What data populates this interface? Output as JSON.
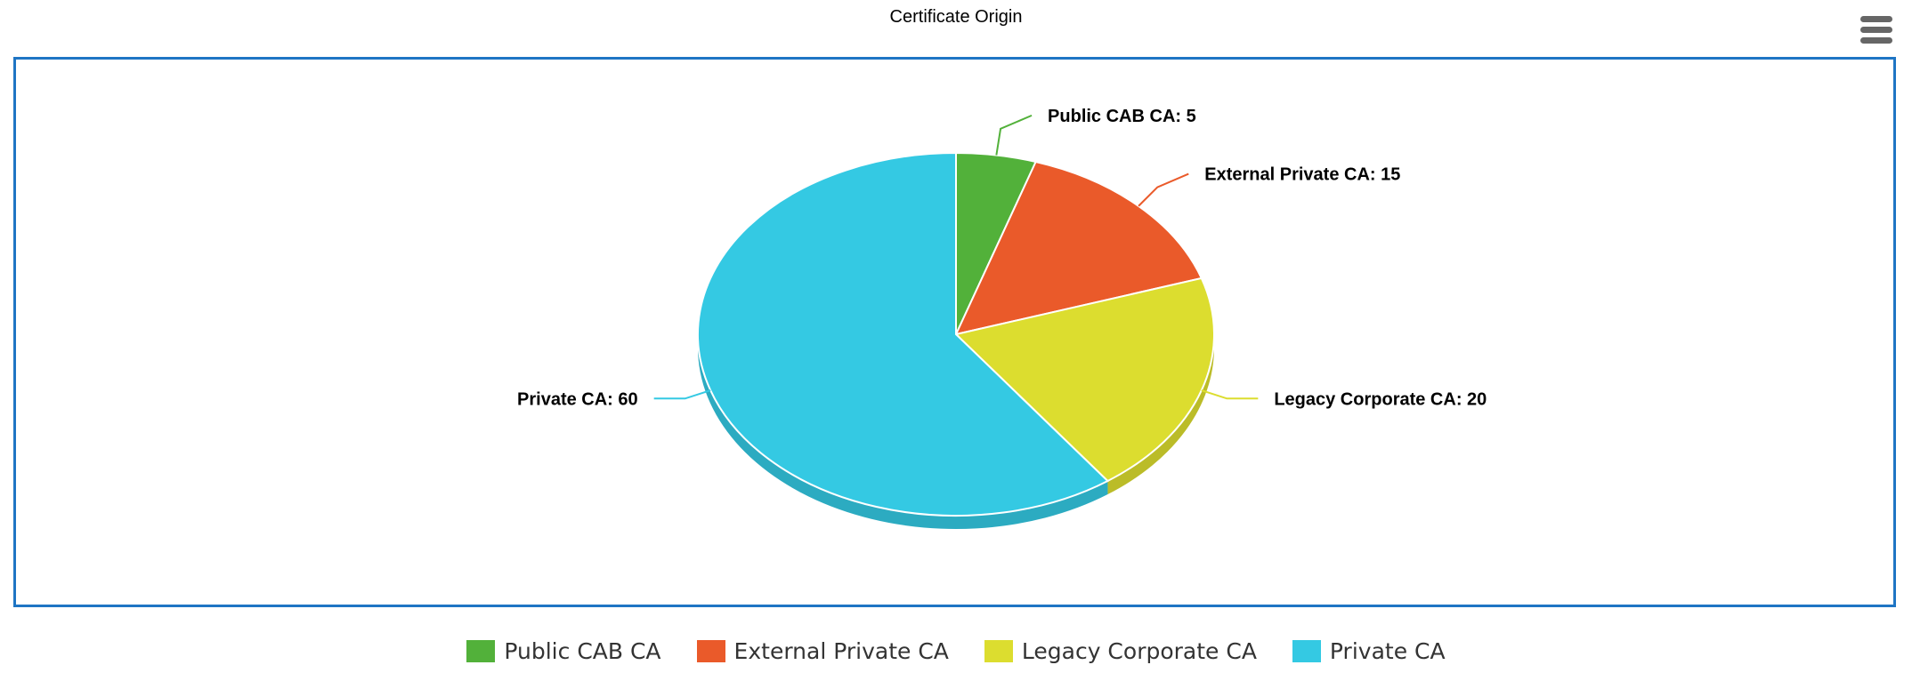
{
  "chart_data": {
    "type": "pie",
    "title": "Certificate Origin",
    "categories": [
      "Public CAB CA",
      "External Private CA",
      "Legacy Corporate CA",
      "Private CA"
    ],
    "values": [
      5,
      15,
      20,
      60
    ],
    "colors": [
      "#52b13a",
      "#ea5a2a",
      "#dcdd2f",
      "#34c9e3"
    ],
    "data_labels": [
      "Public CAB CA: 5",
      "External Private CA: 15",
      "Legacy Corporate CA: 20",
      "Private CA: 60"
    ],
    "legend_position": "bottom-center",
    "style": "3d"
  },
  "toolbar": {
    "menu_icon": "hamburger-menu-icon"
  }
}
